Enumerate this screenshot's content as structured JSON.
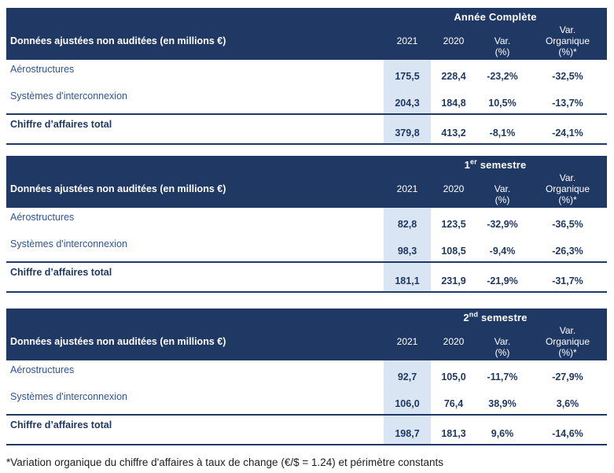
{
  "shared": {
    "row_header_label": "Données ajustées non auditées (en millions €)",
    "col_2021": "2021",
    "col_2020": "2020",
    "col_var_line1": "Var.",
    "col_var_line2": "(%)",
    "col_var_org_line1": "Var.",
    "col_var_org_line2": "Organique",
    "col_var_org_line3": "(%)*"
  },
  "colors": {
    "header_bg": "#1F3864",
    "header_text": "#FFFFFF",
    "row_label_text": "#2E5596",
    "value_text": "#1F3864",
    "highlight_2021": "#D9E5F3",
    "border": "#1F3864",
    "footnote_text": "#202020"
  },
  "tables": [
    {
      "title_main": "Année Complète",
      "title_sup": "",
      "title_rest": "",
      "rows": [
        {
          "label": "Aérostructures",
          "v2021": "175,5",
          "v2020": "228,4",
          "var_pct": "-23,2%",
          "var_org_pct": "-32,5%"
        },
        {
          "label": "Systèmes d'interconnexion",
          "v2021": "204,3",
          "v2020": "184,8",
          "var_pct": "10,5%",
          "var_org_pct": "-13,7%"
        },
        {
          "label": "Chiffre d’affaires total",
          "v2021": "379,8",
          "v2020": "413,2",
          "var_pct": "-8,1%",
          "var_org_pct": "-24,1%"
        }
      ]
    },
    {
      "title_main": "1",
      "title_sup": "er",
      "title_rest": " semestre",
      "rows": [
        {
          "label": "Aérostructures",
          "v2021": "82,8",
          "v2020": "123,5",
          "var_pct": "-32,9%",
          "var_org_pct": "-36,5%"
        },
        {
          "label": "Systèmes d'interconnexion",
          "v2021": "98,3",
          "v2020": "108,5",
          "var_pct": "-9,4%",
          "var_org_pct": "-26,3%"
        },
        {
          "label": "Chiffre d’affaires total",
          "v2021": "181,1",
          "v2020": "231,9",
          "var_pct": "-21,9%",
          "var_org_pct": "-31,7%"
        }
      ]
    },
    {
      "title_main": "2",
      "title_sup": "nd",
      "title_rest": " semestre",
      "rows": [
        {
          "label": "Aérostructures",
          "v2021": "92,7",
          "v2020": "105,0",
          "var_pct": "-11,7%",
          "var_org_pct": "-27,9%"
        },
        {
          "label": "Systèmes d'interconnexion",
          "v2021": "106,0",
          "v2020": "76,4",
          "var_pct": "38,9%",
          "var_org_pct": "3,6%"
        },
        {
          "label": "Chiffre d’affaires total",
          "v2021": "198,7",
          "v2020": "181,3",
          "var_pct": "9,6%",
          "var_org_pct": "-14,6%"
        }
      ]
    }
  ],
  "footnote": "*Variation organique du chiffre d'affaires à taux de change (€/$ = 1.24) et périmètre constants"
}
